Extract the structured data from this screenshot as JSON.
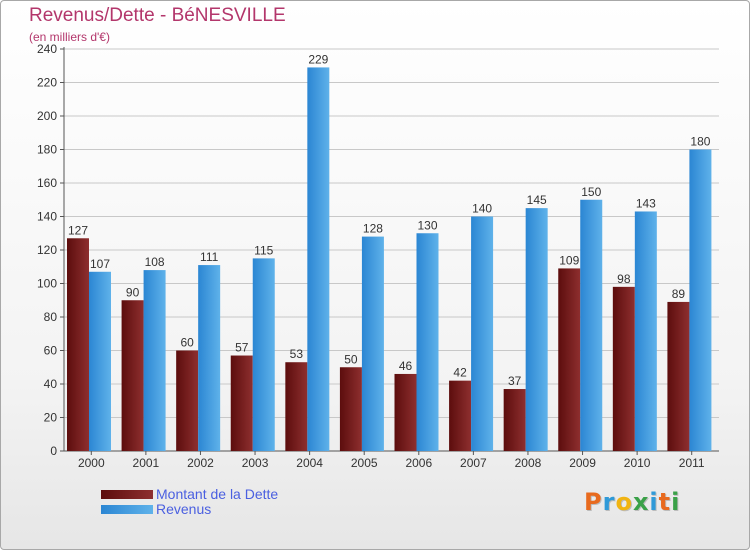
{
  "chart_data": {
    "type": "bar",
    "title": "Revenus/Dette - BéNESVILLE",
    "subtitle": "(en milliers d'€)",
    "categories": [
      "2000",
      "2001",
      "2002",
      "2003",
      "2004",
      "2005",
      "2006",
      "2007",
      "2008",
      "2009",
      "2010",
      "2011"
    ],
    "series": [
      {
        "name": "Montant de la Dette",
        "values": [
          127,
          90,
          60,
          57,
          53,
          50,
          46,
          42,
          37,
          109,
          98,
          89
        ],
        "color": "#7a1c1c"
      },
      {
        "name": "Revenus",
        "values": [
          107,
          108,
          111,
          115,
          229,
          128,
          130,
          140,
          145,
          150,
          143,
          180
        ],
        "color": "#4aa3e6"
      }
    ],
    "ylim": [
      0,
      240
    ],
    "yticks": [
      0,
      20,
      40,
      60,
      80,
      100,
      120,
      140,
      160,
      180,
      200,
      220,
      240
    ],
    "grid": true,
    "legend_position": "bottom-left"
  },
  "logo": {
    "letters": [
      {
        "char": "P",
        "color": "#e86a1e"
      },
      {
        "char": "r",
        "color": "#2f9ad8"
      },
      {
        "char": "o",
        "color": "#f1b412"
      },
      {
        "char": "x",
        "color": "#3aa148"
      },
      {
        "char": "i",
        "color": "#2f9ad8"
      },
      {
        "char": "t",
        "color": "#e86a1e"
      },
      {
        "char": "i",
        "color": "#3aa148"
      }
    ]
  }
}
